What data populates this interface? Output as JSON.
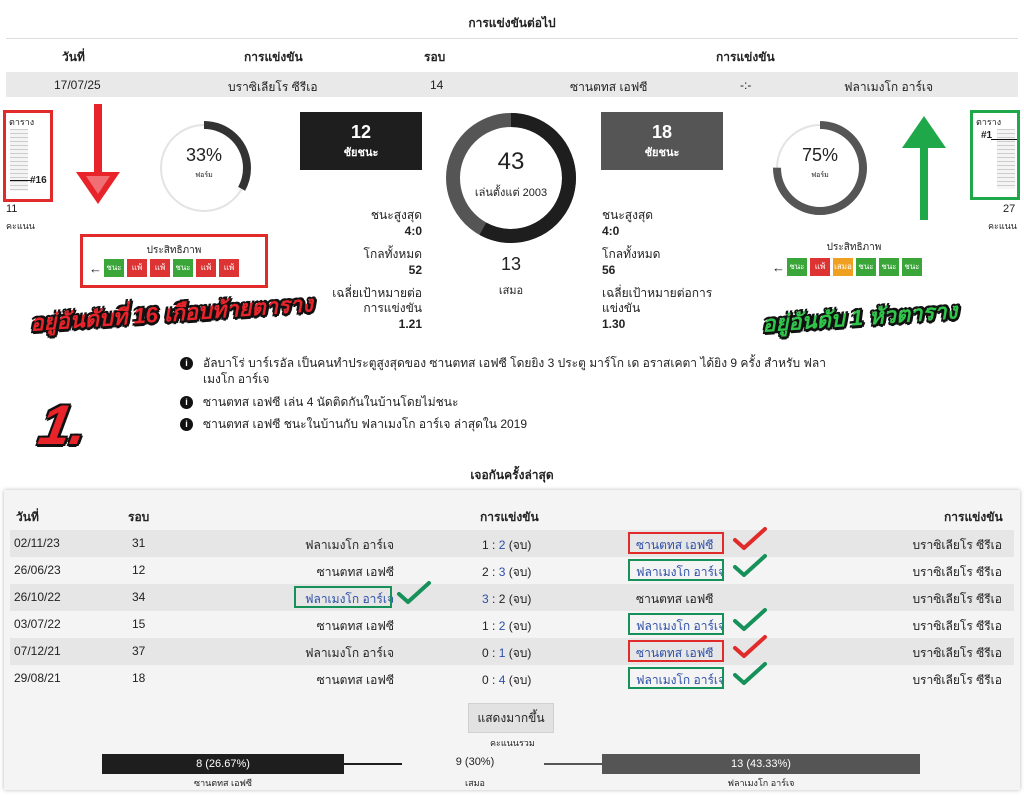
{
  "next_match": {
    "title": "การแข่งขันต่อไป",
    "headers": {
      "date": "วันที่",
      "competition": "การแข่งขัน",
      "round": "รอบ",
      "match": "การแข่งขัน"
    },
    "date": "17/07/25",
    "competition": "บราซิเลียโร ซีรีเอ",
    "round": "14",
    "home": "ซานตทส เอฟซี",
    "score": "-:-",
    "away": "ฟลาเมงโก อาร์เจ"
  },
  "home": {
    "standing_label": "ตาราง",
    "position": "#16",
    "position_fraction": 0.78,
    "points": "11",
    "points_label": "คะแนน",
    "form_percent": "33%",
    "form_percent_value": 33,
    "form_label": "ฟอร์ม",
    "wins": "12",
    "wins_label": "ชัยชนะ",
    "efficiency_label": "ประสิทธิภาพ",
    "form_pills": [
      "ชนะ",
      "แพ้",
      "แพ้",
      "ชนะ",
      "แพ้",
      "แพ้"
    ],
    "form_types": [
      "w",
      "l",
      "l",
      "w",
      "l",
      "l"
    ],
    "stats": [
      {
        "label": "ชนะสูงสุด",
        "value": "4:0"
      },
      {
        "label": "โกลทั้งหมด",
        "value": "52"
      },
      {
        "label": "เฉลี่ยเป้าหมายต่อการแข่งขัน",
        "value": "1.21"
      }
    ]
  },
  "away": {
    "standing_label": "ตาราง",
    "position": "#1",
    "position_fraction": 0.05,
    "points": "27",
    "points_label": "คะแนน",
    "form_percent": "75%",
    "form_percent_value": 75,
    "form_label": "ฟอร์ม",
    "wins": "18",
    "wins_label": "ชัยชนะ",
    "efficiency_label": "ประสิทธิภาพ",
    "form_pills": [
      "ชนะ",
      "แพ้",
      "เสมอ",
      "ชนะ",
      "ชนะ",
      "ชนะ"
    ],
    "form_types": [
      "w",
      "l",
      "d",
      "w",
      "w",
      "w"
    ],
    "stats": [
      {
        "label": "ชนะสูงสุด",
        "value": "4:0"
      },
      {
        "label": "โกลทั้งหมด",
        "value": "56"
      },
      {
        "label": "เฉลี่ยเป้าหมายต่อการแข่งขัน",
        "value": "1.30"
      }
    ]
  },
  "center": {
    "played": "43",
    "played_label": "เล่นตั้งแต่ 2003",
    "draws": "13",
    "draws_label": "เสมอ",
    "ring_fraction": 0.58
  },
  "callouts": {
    "home": "อยู่อันดับที่ 16 เกือบท้ายตาราง",
    "away": "อยู่อันดับ 1 หัวตาราง",
    "number": "1."
  },
  "facts": [
    "อัลบาโร่ บาร์เรอัล เป็นคนทำประตูสูงสุดของ ซานตทส เอฟซี โดยยิง 3 ประตู มาร์โก เด อราสเคตา ได้ยิง 9 ครั้ง สำหรับ ฟลาเมงโก อาร์เจ",
    "ซานตทส เอฟซี เล่น 4 นัดติดกันในบ้านโดยไม่ชนะ",
    "ซานตทส เอฟซี ชนะในบ้านกับ ฟลาเมงโก อาร์เจ ล่าสุดใน 2019"
  ],
  "h2h": {
    "title": "เจอกันครั้งล่าสุด",
    "headers": {
      "date": "วันที่",
      "round": "รอบ",
      "match": "การแข่งขัน",
      "competition": "การแข่งขัน"
    },
    "rows": [
      {
        "date": "02/11/23",
        "round": "31",
        "home": "ฟลาเมงโก อาร์เจ",
        "hs": "1",
        "as": "2",
        "ft": "(จบ)",
        "away": "ซานตทส เอฟซี",
        "comp": "บราซิเลียโร ซีรีเอ"
      },
      {
        "date": "26/06/23",
        "round": "12",
        "home": "ซานตทส เอฟซี",
        "hs": "2",
        "as": "3",
        "ft": "(จบ)",
        "away": "ฟลาเมงโก อาร์เจ",
        "comp": "บราซิเลียโร ซีรีเอ"
      },
      {
        "date": "26/10/22",
        "round": "34",
        "home": "ฟลาเมงโก อาร์เจ",
        "hs": "3",
        "as": "2",
        "ft": "(จบ)",
        "away": "ซานตทส เอฟซี",
        "comp": "บราซิเลียโร ซีรีเอ"
      },
      {
        "date": "03/07/22",
        "round": "15",
        "home": "ซานตทส เอฟซี",
        "hs": "1",
        "as": "2",
        "ft": "(จบ)",
        "away": "ฟลาเมงโก อาร์เจ",
        "comp": "บราซิเลียโร ซีรีเอ"
      },
      {
        "date": "07/12/21",
        "round": "37",
        "home": "ฟลาเมงโก อาร์เจ",
        "hs": "0",
        "as": "1",
        "ft": "(จบ)",
        "away": "ซานตทส เอฟซี",
        "comp": "บราซิเลียโร ซีรีเอ"
      },
      {
        "date": "29/08/21",
        "round": "18",
        "home": "ซานตทส เอฟซี",
        "hs": "0",
        "as": "4",
        "ft": "(จบ)",
        "away": "ฟลาเมงโก อาร์เจ",
        "comp": "บราซิเลียโร ซีรีเอ"
      }
    ],
    "show_more": "แสดงมากขึ้น",
    "summary_label": "คะแนนรวม",
    "home_total": "8 (26.67%)",
    "home_name": "ซานตทส เอฟซี",
    "draw_total": "9 (30%)",
    "draw_label": "เสมอ",
    "away_total": "13 (43.33%)",
    "away_name": "ฟลาเมงโก อาร์เจ"
  },
  "colors": {
    "red": "#e12a2a",
    "green": "#17915a",
    "dark": "#222222",
    "grey": "#555555"
  }
}
